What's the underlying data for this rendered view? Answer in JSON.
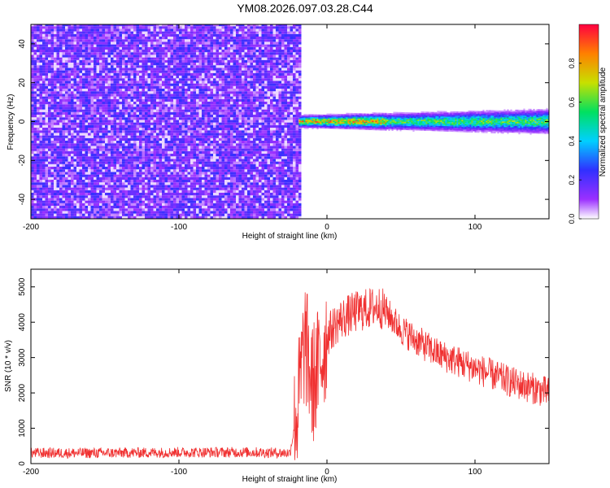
{
  "title": "YM08.2026.097.03.28.C44",
  "colors": {
    "snr_line": "#f03030",
    "frame": "#000000"
  },
  "chart_data": [
    {
      "type": "heatmap",
      "xlabel": "Height of straight line (km)",
      "ylabel": "Frequency (Hz)",
      "xlim": [
        -200,
        150
      ],
      "ylim": [
        -50,
        50
      ],
      "xticks": [
        -200,
        -100,
        0,
        100
      ],
      "yticks": [
        -40,
        -20,
        0,
        20,
        40
      ],
      "colorbar": {
        "label": "Normalized spectral amplitude",
        "range": [
          0,
          1
        ],
        "ticks": [
          "0.0",
          "0.2",
          "0.4",
          "0.6",
          "0.8"
        ],
        "colormap": "hsv-rainbow"
      },
      "noise_region": {
        "x_range": [
          -200,
          -19
        ],
        "y_range": [
          -50,
          50
        ],
        "level_range": [
          0.05,
          0.25
        ]
      },
      "signal_band": {
        "x_range": [
          -19,
          150
        ],
        "center_freq": 0,
        "peak_level": 0.95,
        "half_width_hz": 3
      }
    },
    {
      "type": "line",
      "xlabel": "Height of straight line (km)",
      "ylabel": "SNR (10 * v/v)",
      "xlim": [
        -200,
        150
      ],
      "ylim": [
        0,
        5500
      ],
      "xticks": [
        -200,
        -100,
        0,
        100
      ],
      "yticks": [
        0,
        1000,
        2000,
        3000,
        4000,
        5000
      ],
      "series": [
        {
          "x": [
            -200,
            -150,
            -100,
            -50,
            -25,
            -20,
            -15,
            -10,
            -5,
            0,
            5,
            10,
            20,
            30,
            35,
            40,
            50,
            60,
            75,
            100,
            125,
            150
          ],
          "y": [
            300,
            300,
            320,
            320,
            300,
            1500,
            3500,
            2200,
            2800,
            3600,
            3900,
            4100,
            4300,
            4400,
            4450,
            4300,
            3800,
            3500,
            3100,
            2700,
            2300,
            2000
          ]
        }
      ]
    }
  ]
}
